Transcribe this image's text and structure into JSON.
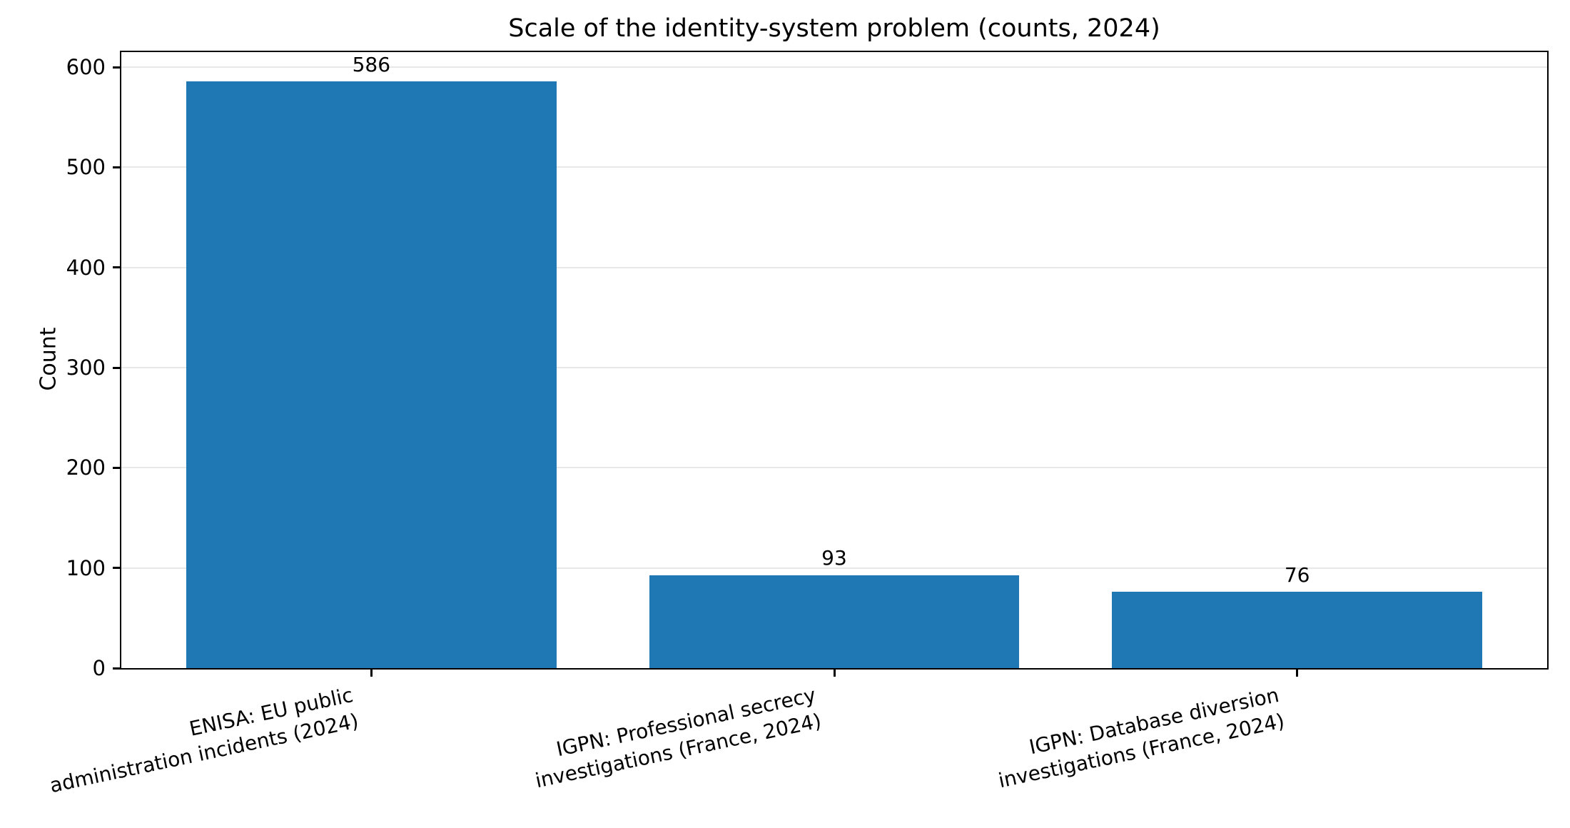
{
  "chart_data": {
    "type": "bar",
    "title": "Scale of the identity-system problem (counts, 2024)",
    "ylabel": "Count",
    "xlabel": "",
    "categories": [
      "ENISA: EU public\nadministration incidents (2024)",
      "IGPN: Professional secrecy\ninvestigations (France, 2024)",
      "IGPN: Database diversion\ninvestigations (France, 2024)"
    ],
    "values": [
      586,
      93,
      76
    ],
    "bar_labels": [
      "586",
      "93",
      "76"
    ],
    "yticks": [
      0,
      100,
      200,
      300,
      400,
      500,
      600
    ],
    "ylim": [
      0,
      615
    ],
    "xtick_rotation_deg": 12,
    "bar_color": "#1f77b4",
    "grid": {
      "axis": "y",
      "on": true
    },
    "grid_color": "#e8e8e8",
    "axis_color": "#000000",
    "text_color": "#000000",
    "background_color": "#ffffff",
    "legend": {
      "visible": false
    }
  }
}
